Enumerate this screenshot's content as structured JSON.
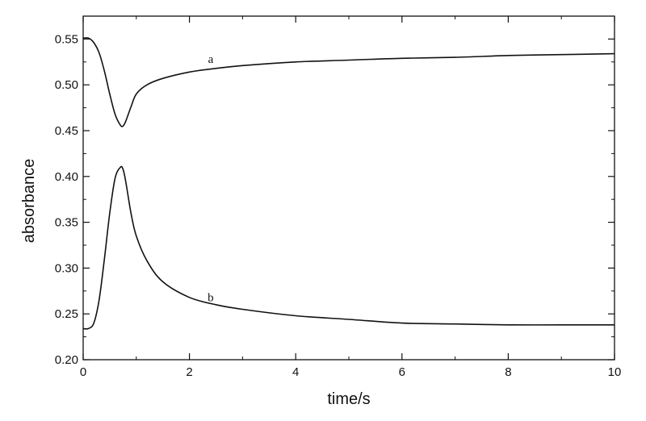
{
  "chart_data": {
    "type": "line",
    "title": "",
    "xlabel": "time/s",
    "ylabel": "absorbance",
    "xlim": [
      0,
      10
    ],
    "ylim": [
      0.2,
      0.575
    ],
    "x_ticks": [
      0,
      2,
      4,
      6,
      8,
      10
    ],
    "x_tick_labels": [
      "0",
      "2",
      "4",
      "6",
      "8",
      "10"
    ],
    "y_ticks": [
      0.2,
      0.25,
      0.3,
      0.35,
      0.4,
      0.45,
      0.5,
      0.55
    ],
    "y_tick_labels": [
      "0.20",
      "0.25",
      "0.30",
      "0.35",
      "0.40",
      "0.45",
      "0.50",
      "0.55"
    ],
    "grid": false,
    "line_color": "#111111",
    "series": [
      {
        "name": "a",
        "x": [
          0,
          0.1,
          0.2,
          0.3,
          0.4,
          0.5,
          0.6,
          0.7,
          0.75,
          0.8,
          0.9,
          1.0,
          1.2,
          1.5,
          2.0,
          2.5,
          3.0,
          4.0,
          5.0,
          6.0,
          7.0,
          8.0,
          9.0,
          10.0
        ],
        "y": [
          0.551,
          0.551,
          0.546,
          0.535,
          0.515,
          0.49,
          0.468,
          0.456,
          0.455,
          0.46,
          0.476,
          0.49,
          0.5,
          0.507,
          0.514,
          0.518,
          0.521,
          0.525,
          0.527,
          0.529,
          0.53,
          0.532,
          0.533,
          0.534
        ]
      },
      {
        "name": "b",
        "x": [
          0,
          0.1,
          0.2,
          0.3,
          0.4,
          0.5,
          0.6,
          0.7,
          0.75,
          0.8,
          0.9,
          1.0,
          1.2,
          1.5,
          2.0,
          2.5,
          3.0,
          4.0,
          5.0,
          6.0,
          7.0,
          8.0,
          9.0,
          10.0
        ],
        "y": [
          0.234,
          0.234,
          0.24,
          0.265,
          0.31,
          0.36,
          0.398,
          0.41,
          0.408,
          0.395,
          0.36,
          0.335,
          0.308,
          0.285,
          0.268,
          0.26,
          0.255,
          0.248,
          0.244,
          0.24,
          0.239,
          0.238,
          0.238,
          0.238
        ]
      }
    ],
    "curve_labels": [
      {
        "text": "a",
        "x": 2.4,
        "y": 0.524
      },
      {
        "text": "b",
        "x": 2.4,
        "y": 0.264
      }
    ]
  }
}
